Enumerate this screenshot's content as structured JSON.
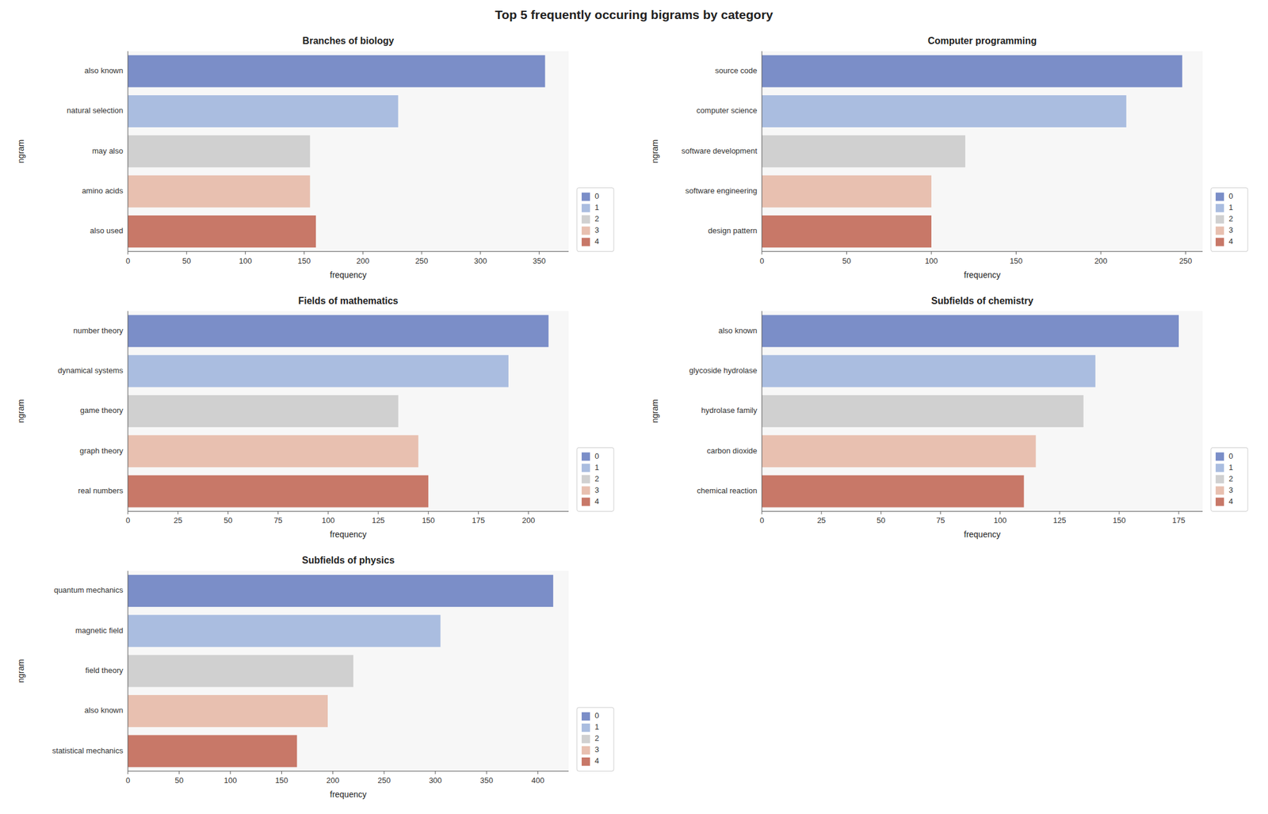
{
  "title": "Top 5 frequently occuring bigrams by category",
  "chart_data": [
    {
      "type": "bar",
      "orientation": "horizontal",
      "title": "Branches of biology",
      "xlabel": "frequency",
      "ylabel": "ngram",
      "categories": [
        "also known",
        "natural selection",
        "may also",
        "amino acids",
        "also used"
      ],
      "series": [
        {
          "name": "0",
          "color": "#7b8ec8",
          "values": [
            355,
            null,
            null,
            null,
            null
          ]
        },
        {
          "name": "1",
          "color": "#aabde0",
          "values": [
            null,
            230,
            null,
            null,
            null
          ]
        },
        {
          "name": "2",
          "color": "#d0d0d0",
          "values": [
            null,
            null,
            155,
            null,
            null
          ]
        },
        {
          "name": "3",
          "color": "#e8c0b0",
          "values": [
            null,
            null,
            null,
            155,
            null
          ]
        },
        {
          "name": "4",
          "color": "#c87868",
          "values": [
            null,
            null,
            null,
            null,
            160
          ]
        }
      ],
      "xlim": [
        0,
        375
      ],
      "xticks": [
        0,
        50,
        100,
        150,
        200,
        250,
        300,
        350
      ],
      "legend": "lower right",
      "grid": false
    },
    {
      "type": "bar",
      "orientation": "horizontal",
      "title": "Computer programming",
      "xlabel": "frequency",
      "ylabel": "ngram",
      "categories": [
        "source code",
        "computer science",
        "software development",
        "software engineering",
        "design pattern"
      ],
      "series": [
        {
          "name": "0",
          "color": "#7b8ec8",
          "values": [
            248,
            null,
            null,
            null,
            null
          ]
        },
        {
          "name": "1",
          "color": "#aabde0",
          "values": [
            null,
            215,
            null,
            null,
            null
          ]
        },
        {
          "name": "2",
          "color": "#d0d0d0",
          "values": [
            null,
            null,
            120,
            null,
            null
          ]
        },
        {
          "name": "3",
          "color": "#e8c0b0",
          "values": [
            null,
            null,
            null,
            100,
            null
          ]
        },
        {
          "name": "4",
          "color": "#c87868",
          "values": [
            null,
            null,
            null,
            null,
            100
          ]
        }
      ],
      "xlim": [
        0,
        260
      ],
      "xticks": [
        0,
        50,
        100,
        150,
        200,
        250
      ],
      "legend": "lower right",
      "grid": false
    },
    {
      "type": "bar",
      "orientation": "horizontal",
      "title": "Fields of mathematics",
      "xlabel": "frequency",
      "ylabel": "ngram",
      "categories": [
        "number theory",
        "dynamical systems",
        "game theory",
        "graph theory",
        "real numbers"
      ],
      "series": [
        {
          "name": "0",
          "color": "#7b8ec8",
          "values": [
            210,
            null,
            null,
            null,
            null
          ]
        },
        {
          "name": "1",
          "color": "#aabde0",
          "values": [
            null,
            190,
            null,
            null,
            null
          ]
        },
        {
          "name": "2",
          "color": "#d0d0d0",
          "values": [
            null,
            null,
            135,
            null,
            null
          ]
        },
        {
          "name": "3",
          "color": "#e8c0b0",
          "values": [
            null,
            null,
            null,
            145,
            null
          ]
        },
        {
          "name": "4",
          "color": "#c87868",
          "values": [
            null,
            null,
            null,
            null,
            150
          ]
        }
      ],
      "xlim": [
        0,
        220
      ],
      "xticks": [
        0,
        25,
        50,
        75,
        100,
        125,
        150,
        175,
        200
      ],
      "legend": "lower right",
      "grid": false
    },
    {
      "type": "bar",
      "orientation": "horizontal",
      "title": "Subfields of chemistry",
      "xlabel": "frequency",
      "ylabel": "ngram",
      "categories": [
        "also known",
        "glycoside hydrolase",
        "hydrolase family",
        "carbon dioxide",
        "chemical reaction"
      ],
      "series": [
        {
          "name": "0",
          "color": "#7b8ec8",
          "values": [
            175,
            null,
            null,
            null,
            null
          ]
        },
        {
          "name": "1",
          "color": "#aabde0",
          "values": [
            null,
            140,
            null,
            null,
            null
          ]
        },
        {
          "name": "2",
          "color": "#d0d0d0",
          "values": [
            null,
            null,
            135,
            null,
            null
          ]
        },
        {
          "name": "3",
          "color": "#e8c0b0",
          "values": [
            null,
            null,
            null,
            115,
            null
          ]
        },
        {
          "name": "4",
          "color": "#c87868",
          "values": [
            null,
            null,
            null,
            null,
            110
          ]
        }
      ],
      "xlim": [
        0,
        185
      ],
      "xticks": [
        0,
        25,
        50,
        75,
        100,
        125,
        150,
        175
      ],
      "legend": "lower right",
      "grid": false
    },
    {
      "type": "bar",
      "orientation": "horizontal",
      "title": "Subfields of physics",
      "xlabel": "frequency",
      "ylabel": "ngram",
      "categories": [
        "quantum mechanics",
        "magnetic field",
        "field theory",
        "also known",
        "statistical mechanics"
      ],
      "series": [
        {
          "name": "0",
          "color": "#7b8ec8",
          "values": [
            415,
            null,
            null,
            null,
            null
          ]
        },
        {
          "name": "1",
          "color": "#aabde0",
          "values": [
            null,
            305,
            null,
            null,
            null
          ]
        },
        {
          "name": "2",
          "color": "#d0d0d0",
          "values": [
            null,
            null,
            220,
            null,
            null
          ]
        },
        {
          "name": "3",
          "color": "#e8c0b0",
          "values": [
            null,
            null,
            null,
            195,
            null
          ]
        },
        {
          "name": "4",
          "color": "#c87868",
          "values": [
            null,
            null,
            null,
            null,
            165
          ]
        }
      ],
      "xlim": [
        0,
        430
      ],
      "xticks": [
        0,
        50,
        100,
        150,
        200,
        250,
        300,
        350,
        400
      ],
      "legend": "lower right",
      "grid": false
    }
  ]
}
